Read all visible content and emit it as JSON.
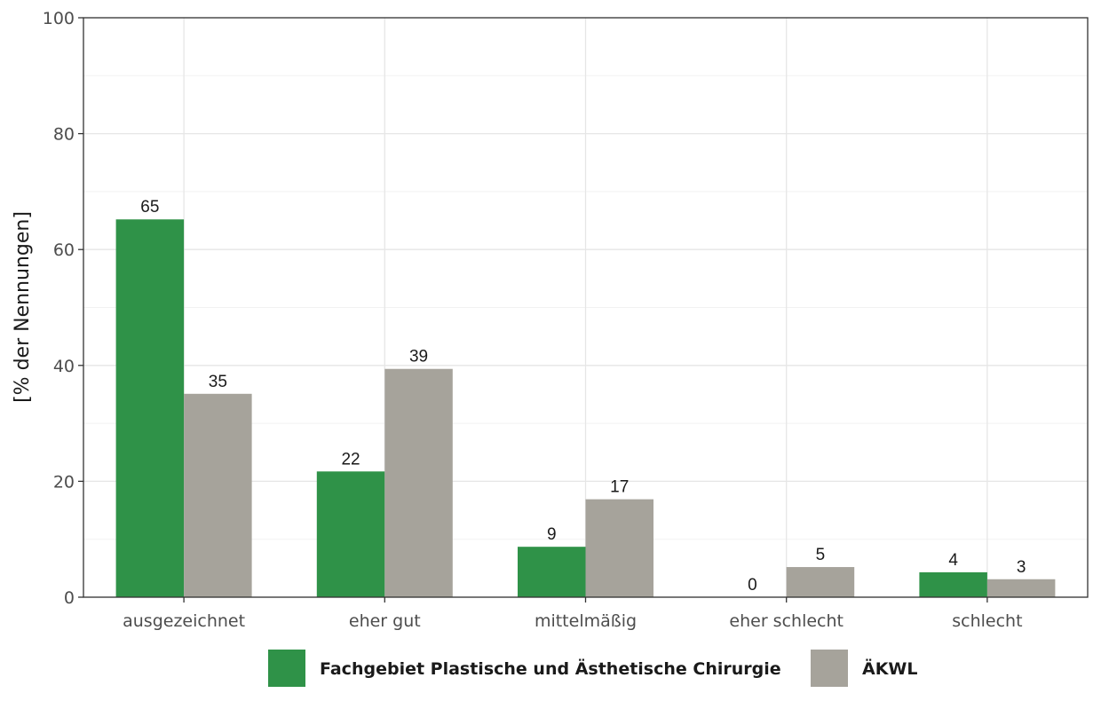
{
  "chart_data": {
    "type": "bar",
    "title": "",
    "xlabel": "",
    "ylabel": "[% der Nennungen]",
    "categories": [
      "ausgezeichnet",
      "eher gut",
      "mittelmäßig",
      "eher schlecht",
      "schlecht"
    ],
    "series": [
      {
        "name": "Fachgebiet Plastische und Ästhetische Chirurgie",
        "values": [
          65.2,
          21.7,
          8.7,
          0,
          4.3
        ],
        "labels": [
          "65",
          "22",
          "9",
          "0",
          "4"
        ],
        "color": "#2f9248"
      },
      {
        "name": "ÄKWL",
        "values": [
          35.1,
          39.4,
          16.9,
          5.2,
          3.1
        ],
        "labels": [
          "35",
          "39",
          "17",
          "5",
          "3"
        ],
        "color": "#a6a39b"
      }
    ],
    "ylim": [
      0,
      100
    ],
    "yticks": [
      0,
      20,
      40,
      60,
      80,
      100
    ],
    "grid": true,
    "legend": "bottom"
  }
}
